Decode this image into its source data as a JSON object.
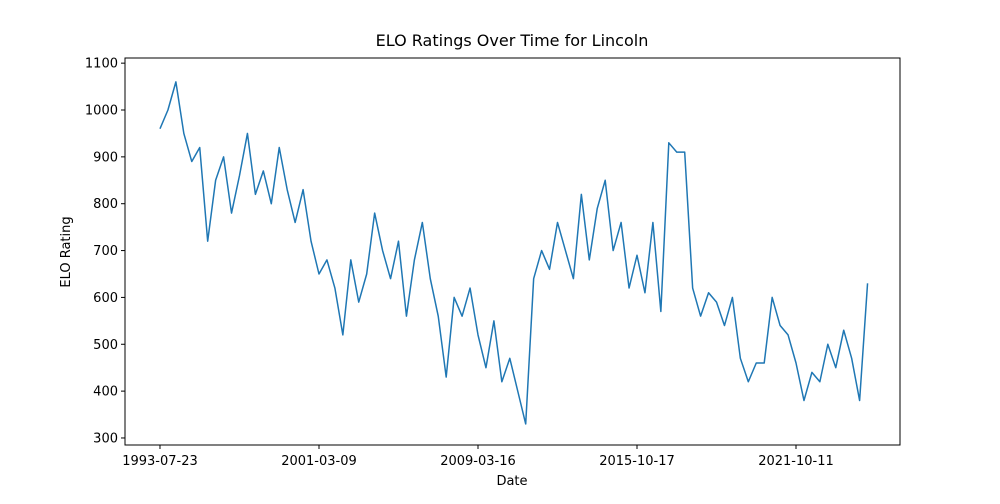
{
  "chart_data": {
    "type": "line",
    "title": "ELO Ratings Over Time for Lincoln",
    "xlabel": "Date",
    "ylabel": "ELO Rating",
    "x": [
      0,
      50,
      100,
      150,
      200,
      250,
      300,
      350,
      400,
      450,
      500,
      550,
      600,
      650,
      700,
      750,
      800,
      850,
      900,
      950,
      1000,
      1050,
      1100,
      1150,
      1200,
      1250,
      1300,
      1350,
      1400,
      1450,
      1500,
      1550,
      1600,
      1650,
      1700,
      1750,
      1800,
      1850,
      1900,
      1950,
      2000,
      2050,
      2100,
      2150,
      2200,
      2250,
      2300,
      2350,
      2400,
      2450,
      2500,
      2550,
      2600,
      2650,
      2700,
      2750,
      2800,
      2850,
      2900,
      2950,
      3000,
      3050,
      3100,
      3150,
      3200,
      3250,
      3300,
      3350,
      3400,
      3450,
      3500,
      3550,
      3600,
      3650,
      3700,
      3750,
      3800,
      3850,
      3900,
      3950,
      4000,
      4050,
      4100,
      4150,
      4200,
      4250,
      4300,
      4350,
      4400,
      4450
    ],
    "series": [
      {
        "name": "Lincoln",
        "color": "#1f77b4",
        "values": [
          960,
          1000,
          1060,
          950,
          890,
          920,
          720,
          850,
          900,
          780,
          860,
          950,
          820,
          870,
          800,
          920,
          830,
          760,
          830,
          720,
          650,
          680,
          620,
          520,
          680,
          590,
          650,
          780,
          700,
          640,
          720,
          560,
          680,
          760,
          640,
          560,
          430,
          600,
          560,
          620,
          520,
          450,
          550,
          420,
          470,
          400,
          330,
          640,
          700,
          660,
          760,
          700,
          640,
          820,
          680,
          790,
          850,
          700,
          760,
          620,
          690,
          610,
          760,
          570,
          930,
          910,
          910,
          620,
          560,
          610,
          590,
          540,
          600,
          470,
          420,
          460,
          460,
          600,
          540,
          520,
          460,
          380,
          440,
          420,
          500,
          450,
          530,
          470,
          380,
          630
        ]
      }
    ],
    "xlim": [
      -220,
      4654
    ],
    "ylim": [
      285,
      1111
    ],
    "xticks": [
      {
        "value": 0,
        "label": "1993-07-23"
      },
      {
        "value": 1000,
        "label": "2001-03-09"
      },
      {
        "value": 2000,
        "label": "2009-03-16"
      },
      {
        "value": 3000,
        "label": "2015-10-17"
      },
      {
        "value": 4000,
        "label": "2021-10-11"
      }
    ],
    "yticks": [
      300,
      400,
      500,
      600,
      700,
      800,
      900,
      1000,
      1100
    ],
    "grid": false
  }
}
